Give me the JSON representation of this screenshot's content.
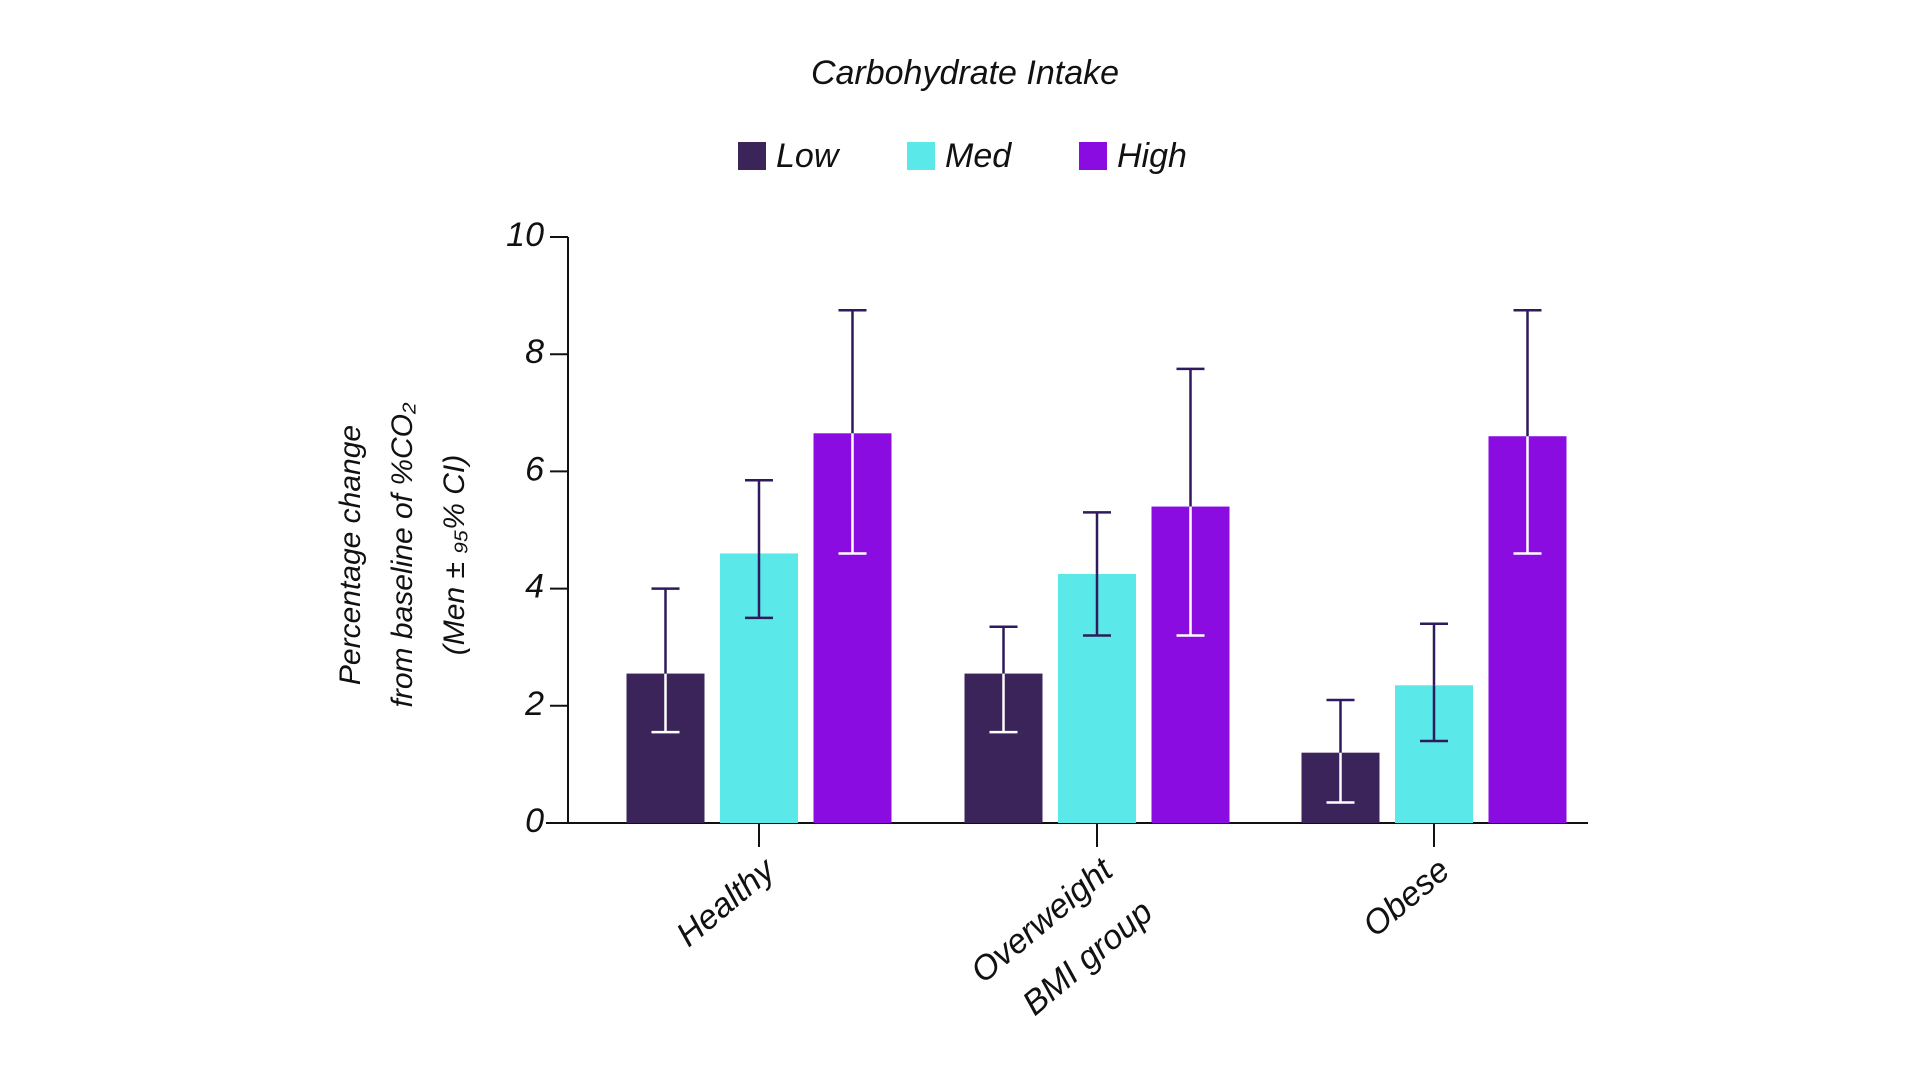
{
  "chart_data": {
    "type": "bar",
    "title": "Carbohydrate Intake",
    "ylabel": [
      "Percentage change",
      "from baseline of %CO₂",
      "(Men ± ₉₅% CI)"
    ],
    "xlabel": "BMI group",
    "categories": [
      "Healthy",
      "Overweight",
      "Obese"
    ],
    "series": [
      {
        "name": "Low",
        "color": "#3a2459",
        "values": [
          2.55,
          2.55,
          1.2
        ],
        "ci_low": [
          1.55,
          1.55,
          0.35
        ],
        "ci_high": [
          4.0,
          3.35,
          2.1
        ]
      },
      {
        "name": "Med",
        "color": "#5ae8e8",
        "values": [
          4.6,
          4.25,
          2.35
        ],
        "ci_low": [
          3.5,
          3.2,
          1.4
        ],
        "ci_high": [
          5.85,
          5.3,
          3.4
        ]
      },
      {
        "name": "High",
        "color": "#8a0ce0",
        "values": [
          6.65,
          5.4,
          6.6
        ],
        "ci_low": [
          4.6,
          3.2,
          4.6
        ],
        "ci_high": [
          8.75,
          7.75,
          8.75
        ]
      }
    ],
    "error_color": "#2e1a5c",
    "ylim": [
      0,
      10
    ],
    "yticks": [
      0,
      2,
      4,
      6,
      8,
      10
    ],
    "legend": "top",
    "grid": false
  }
}
